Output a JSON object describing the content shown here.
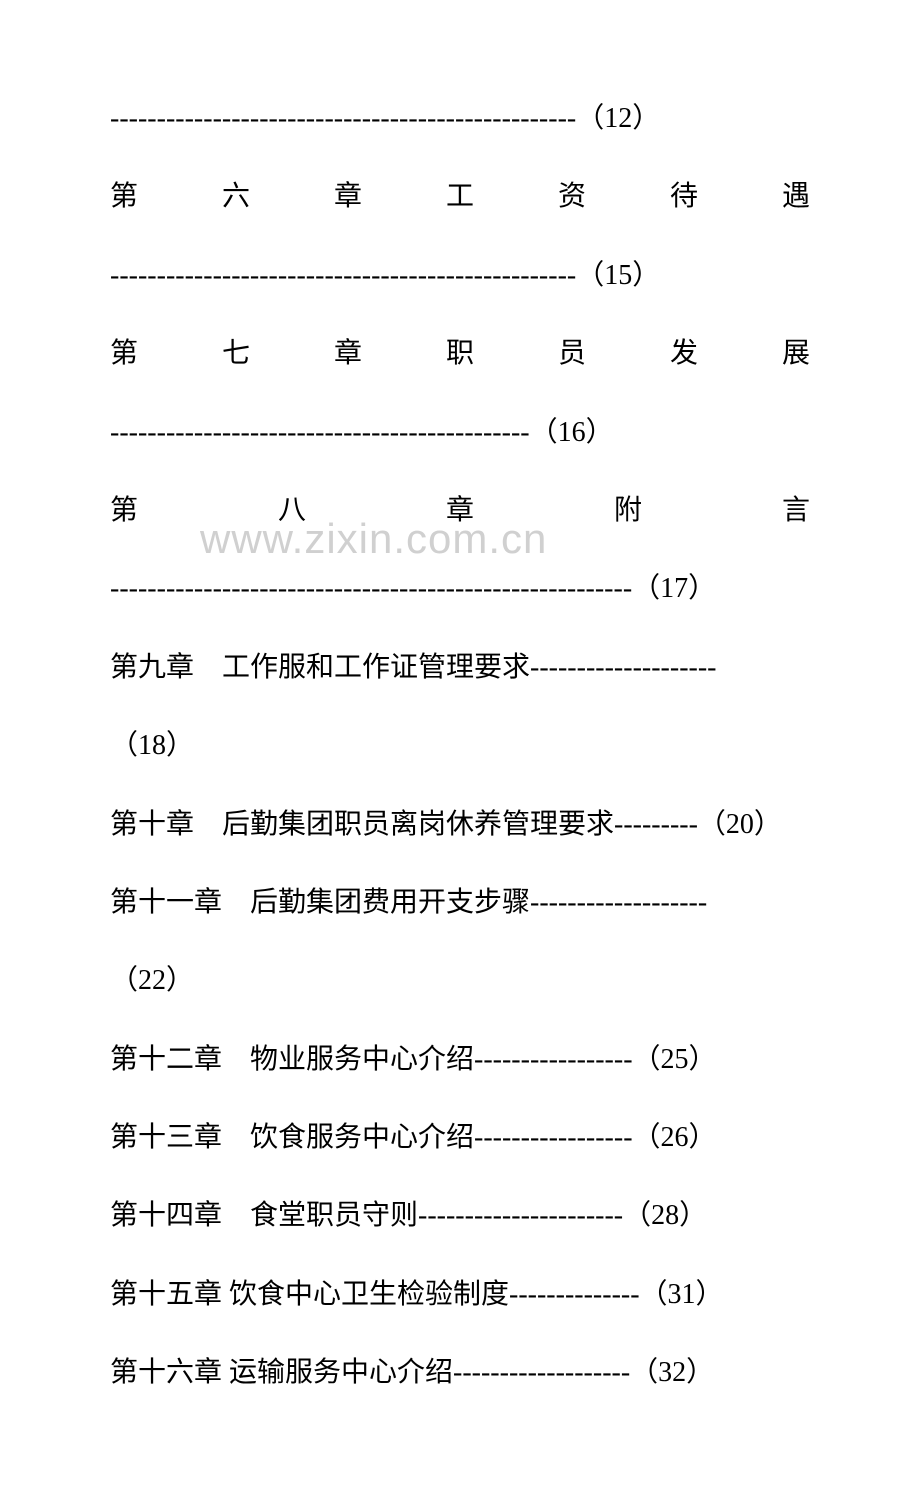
{
  "watermark": "www.zixin.com.cn",
  "toc": {
    "line1": "--------------------------------------------------（12）",
    "line2a": "第 六 章   工 资 待 遇",
    "line2b": "--------------------------------------------------（15）",
    "line3a": "第 七 章   职 员 发 展",
    "line3b": "---------------------------------------------（16）",
    "line4a": "第 八 章    附  言",
    "line4b": "--------------------------------------------------------（17）",
    "line5a": "第九章　工作服和工作证管理要求--------------------",
    "line5b": "（18）",
    "line6": "第十章　后勤集团职员离岗休养管理要求---------（20）",
    "line7a": "第十一章　后勤集团费用开支步骤-------------------",
    "line7b": "（22）",
    "line8": "第十二章　物业服务中心介绍-----------------（25）",
    "line9": "第十三章　饮食服务中心介绍-----------------（26）",
    "line10": "第十四章　食堂职员守则----------------------（28）",
    "line11": "第十五章  饮食中心卫生检验制度--------------（31）",
    "line12": "第十六章  运输服务中心介绍-------------------（32）"
  },
  "styles": {
    "background_color": "#ffffff",
    "text_color": "#000000",
    "watermark_color": "#d0d0d0",
    "font_size_main": 28,
    "font_size_watermark": 42,
    "line_height": 2.8,
    "font_family": "SimSun"
  }
}
